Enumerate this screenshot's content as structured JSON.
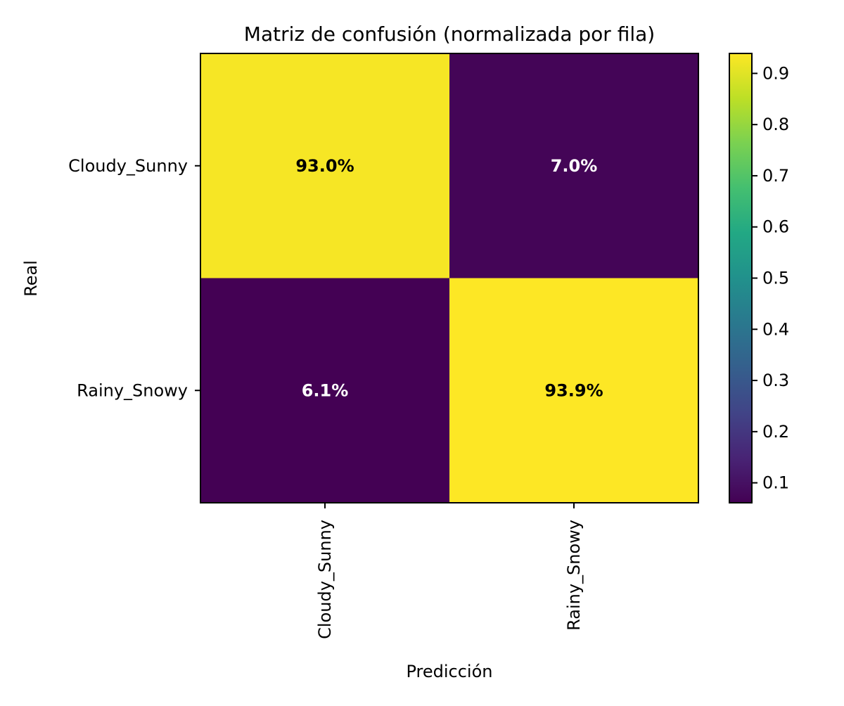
{
  "chart_data": {
    "type": "heatmap",
    "title": "Matriz de confusión (normalizada por fila)",
    "xlabel": "Predicción",
    "ylabel": "Real",
    "x_categories": [
      "Cloudy_Sunny",
      "Rainy_Snowy"
    ],
    "y_categories": [
      "Cloudy_Sunny",
      "Rainy_Snowy"
    ],
    "values": [
      [
        0.93,
        0.07
      ],
      [
        0.061,
        0.939
      ]
    ],
    "cell_labels": [
      [
        "93.0%",
        "7.0%"
      ],
      [
        "6.1%",
        "93.9%"
      ]
    ],
    "colormap": "viridis",
    "colorbar": {
      "range": [
        0.061,
        0.939
      ],
      "ticks": [
        0.1,
        0.2,
        0.3,
        0.4,
        0.5,
        0.6,
        0.7,
        0.8,
        0.9
      ],
      "tick_labels": [
        "0.1",
        "0.2",
        "0.3",
        "0.4",
        "0.5",
        "0.6",
        "0.7",
        "0.8",
        "0.9"
      ]
    },
    "x_tick_rotation": "vertical",
    "grid": false,
    "legend": "none"
  }
}
